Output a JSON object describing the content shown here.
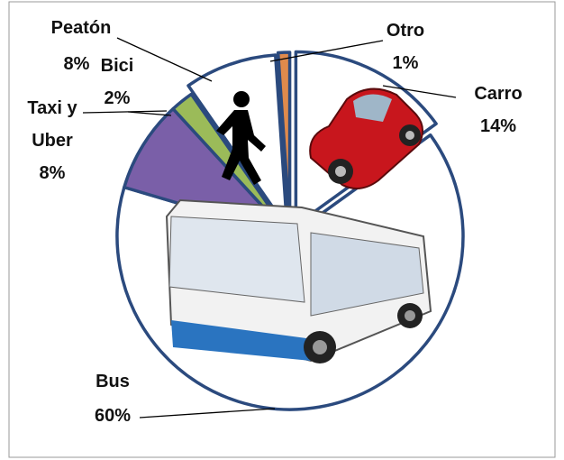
{
  "chart_data": {
    "type": "pie",
    "categories": [
      "Carro",
      "Bus",
      "Taxi y Uber",
      "Bici",
      "Peatón",
      "Otro"
    ],
    "values": [
      14,
      60,
      8,
      2,
      8,
      1
    ],
    "value_labels": [
      "14%",
      "60%",
      "8%",
      "2%",
      "8%",
      "1%"
    ],
    "colors": [
      "#ffffff",
      "#ffffff",
      "#7a5fa8",
      "#9bbb59",
      "#ffffff",
      "#e08a4c"
    ]
  }
}
